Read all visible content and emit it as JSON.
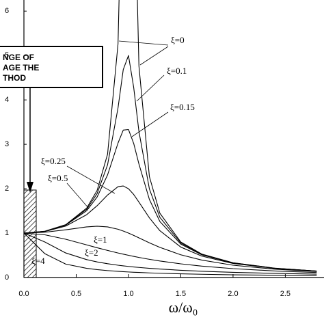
{
  "chart_data": {
    "type": "line",
    "xlabel": "ω/ω₀",
    "box_lines": [
      "NGE OF",
      "AGE THE",
      "THOD"
    ],
    "x": [
      0,
      0.2,
      0.4,
      0.6,
      0.7,
      0.8,
      0.9,
      0.95,
      1.0,
      1.05,
      1.1,
      1.2,
      1.3,
      1.5,
      1.7,
      2.0,
      2.4,
      2.8
    ],
    "series": [
      {
        "name": "ξ=0",
        "color": "#000000",
        "values": [
          1,
          1.042,
          1.19,
          1.563,
          1.961,
          2.778,
          5.263,
          10.256,
          null,
          9.756,
          4.762,
          2.273,
          1.449,
          0.8,
          0.529,
          0.333,
          0.21,
          0.146
        ]
      },
      {
        "name": "ξ=0.1",
        "color": "#000000",
        "values": [
          1,
          1.041,
          1.185,
          1.536,
          1.891,
          2.538,
          3.821,
          4.682,
          5.0,
          4.279,
          3.288,
          1.995,
          1.356,
          0.778,
          0.521,
          0.33,
          0.209,
          0.146
        ]
      },
      {
        "name": "ξ=0.15",
        "color": "#000000",
        "values": [
          1,
          1.04,
          1.179,
          1.504,
          1.813,
          2.311,
          3.029,
          3.32,
          3.333,
          3.019,
          2.556,
          1.759,
          1.262,
          0.753,
          0.511,
          0.327,
          0.208,
          0.145
        ]
      },
      {
        "name": "ξ=0.25",
        "color": "#000000",
        "values": [
          1,
          1.036,
          1.158,
          1.415,
          1.617,
          1.858,
          2.047,
          2.062,
          2.0,
          1.87,
          1.699,
          1.344,
          1.055,
          0.686,
          0.483,
          0.316,
          0.204,
          0.143
        ]
      },
      {
        "name": "ξ=0.5",
        "color": "#000000",
        "values": [
          1,
          1.02,
          1.075,
          1.14,
          1.155,
          1.14,
          1.087,
          1.047,
          1.0,
          0.948,
          0.893,
          0.782,
          0.679,
          0.512,
          0.393,
          0.277,
          0.188,
          0.135
        ]
      },
      {
        "name": "ξ=1",
        "color": "#000000",
        "values": [
          1,
          0.962,
          0.862,
          0.735,
          0.671,
          0.61,
          0.552,
          0.526,
          0.5,
          0.476,
          0.452,
          0.41,
          0.372,
          0.308,
          0.257,
          0.2,
          0.148,
          0.113
        ]
      },
      {
        "name": "ξ=2",
        "color": "#000000",
        "values": [
          1,
          0.8,
          0.553,
          0.403,
          0.351,
          0.311,
          0.277,
          0.263,
          0.25,
          0.238,
          0.227,
          0.207,
          0.191,
          0.163,
          0.142,
          0.117,
          0.093,
          0.076
        ]
      },
      {
        "name": "ξ=4",
        "color": "#000000",
        "values": [
          1,
          0.536,
          0.302,
          0.207,
          0.178,
          0.156,
          0.139,
          0.132,
          0.125,
          0.119,
          0.114,
          0.104,
          0.096,
          0.083,
          0.073,
          0.061,
          0.051,
          0.043
        ]
      }
    ],
    "xlim": [
      0,
      2.87
    ],
    "ylim": [
      0,
      6.25
    ],
    "xticks": [
      {
        "value": 0,
        "label": "0.0"
      },
      {
        "value": 0.5,
        "label": "0.5"
      },
      {
        "value": 1,
        "label": "1.0"
      },
      {
        "value": 1.5,
        "label": "1.5"
      },
      {
        "value": 2,
        "label": "2.0"
      },
      {
        "value": 2.5,
        "label": "2.5"
      }
    ],
    "yticks": [
      0,
      1,
      2,
      3,
      4,
      5,
      6
    ],
    "grid": false
  }
}
